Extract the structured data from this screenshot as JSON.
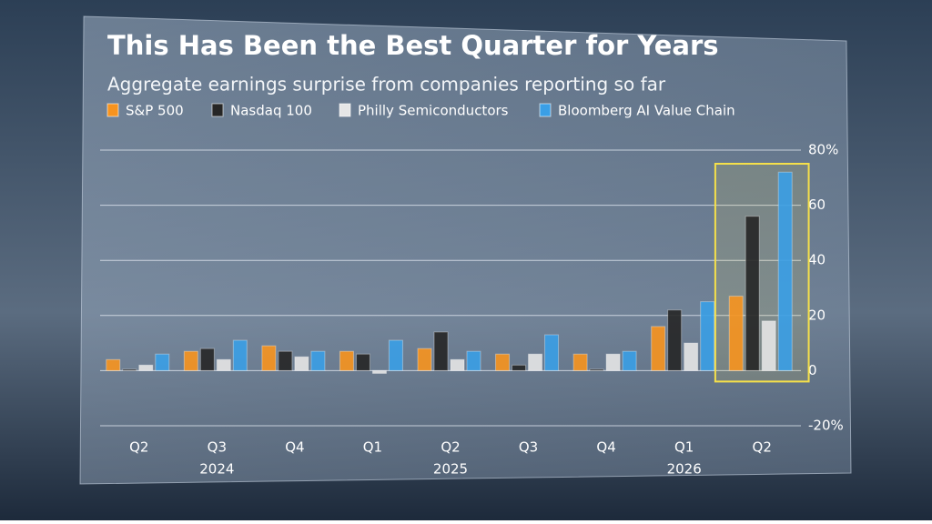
{
  "chart_data": {
    "type": "bar",
    "title": "This Has Been the Best Quarter for Years",
    "subtitle": "Aggregate earnings surprise from companies reporting so far",
    "categories": [
      "Q2",
      "Q3",
      "Q4",
      "Q1",
      "Q2",
      "Q3",
      "Q4",
      "Q1",
      "Q2"
    ],
    "years": [
      null,
      "2024",
      null,
      null,
      "2025",
      null,
      null,
      "2026",
      null
    ],
    "series": [
      {
        "name": "S&P 500",
        "color": "#f7931e",
        "values": [
          4,
          7,
          9,
          7,
          8,
          6,
          6,
          16,
          27
        ]
      },
      {
        "name": "Nasdaq 100",
        "color": "#262626",
        "values": [
          0.5,
          8,
          7,
          6,
          14,
          2,
          0.5,
          22,
          56
        ]
      },
      {
        "name": "Philly Semiconductors",
        "color": "#e6e6e6",
        "values": [
          2,
          4,
          5,
          -1,
          4,
          6,
          6,
          10,
          18
        ]
      },
      {
        "name": "Bloomberg AI Value Chain",
        "color": "#3a9fe6",
        "values": [
          6,
          11,
          7,
          11,
          7,
          13,
          7,
          25,
          72
        ]
      }
    ],
    "ylim": [
      -20,
      80
    ],
    "yticks": [
      {
        "value": -20,
        "label": "-20%"
      },
      0,
      20,
      40,
      60,
      {
        "value": 80,
        "label": "80%"
      }
    ],
    "grid": true
  }
}
